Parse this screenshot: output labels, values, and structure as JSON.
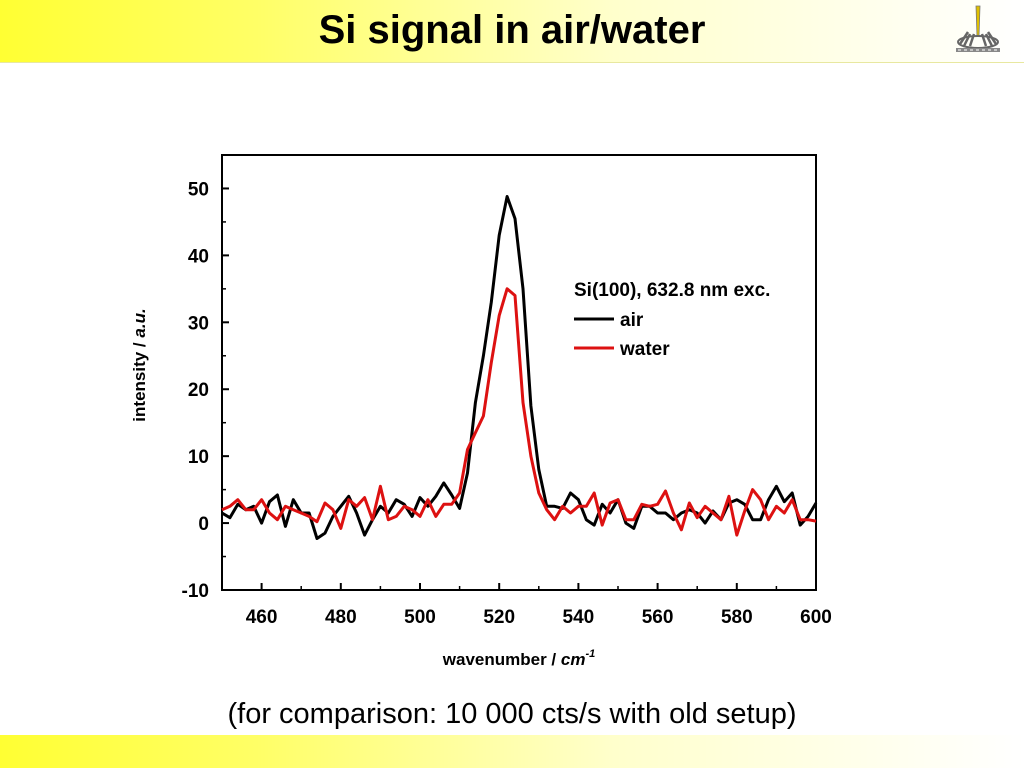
{
  "slide": {
    "title": "Si signal in air/water",
    "caption": "(for comparison: 10 000 cts/s with old setup)",
    "logo_icon": "laser-spark-logo-icon"
  },
  "colors": {
    "header_yellow": "#ffff33",
    "air": "#000000",
    "water": "#dd1111"
  },
  "chart_data": {
    "type": "line",
    "title": "",
    "xlabel": "wavenumber / ",
    "xlabel_unit": "cm",
    "xlabel_unit_exp": "-1",
    "ylabel": "intensity / ",
    "ylabel_unit": "a.u.",
    "xlim": [
      450,
      600
    ],
    "ylim": [
      -10,
      55
    ],
    "xticks": [
      460,
      480,
      500,
      520,
      540,
      560,
      580,
      600
    ],
    "yticks": [
      -10,
      0,
      10,
      20,
      30,
      40,
      50
    ],
    "grid": false,
    "legend": {
      "placement": "top-right",
      "title": "Si(100), 632.8 nm exc.",
      "entries": [
        "air",
        "water"
      ]
    },
    "series": [
      {
        "name": "air",
        "color": "#000000",
        "x": [
          450,
          452,
          454,
          456,
          458,
          460,
          462,
          464,
          466,
          468,
          470,
          472,
          474,
          476,
          478,
          480,
          482,
          484,
          486,
          488,
          490,
          492,
          494,
          496,
          498,
          500,
          502,
          504,
          506,
          508,
          510,
          512,
          514,
          516,
          518,
          520,
          522,
          524,
          526,
          528,
          530,
          532,
          534,
          536,
          538,
          540,
          542,
          544,
          546,
          548,
          550,
          552,
          554,
          556,
          558,
          560,
          562,
          564,
          566,
          568,
          570,
          572,
          574,
          576,
          578,
          580,
          582,
          584,
          586,
          588,
          590,
          592,
          594,
          596,
          598,
          600
        ],
        "y": [
          1.5,
          0.8,
          2.8,
          2.0,
          2.5,
          0,
          3.2,
          4.2,
          -0.5,
          3.5,
          1.5,
          1.5,
          -2.3,
          -1.5,
          1.0,
          2.5,
          4.0,
          1.5,
          -1.8,
          0.5,
          2.5,
          1.5,
          3.5,
          2.8,
          1.0,
          3.8,
          2.5,
          4.0,
          6.0,
          4.2,
          2.2,
          7.5,
          18.0,
          25.0,
          33.0,
          43.0,
          48.8,
          45.5,
          35.0,
          17.5,
          8.0,
          2.5,
          2.5,
          2.2,
          4.5,
          3.5,
          0.5,
          -0.3,
          2.8,
          1.5,
          3.5,
          0,
          -0.8,
          2.5,
          2.5,
          1.5,
          1.5,
          0.5,
          1.5,
          2.0,
          1.5,
          0,
          1.8,
          0.5,
          3.0,
          3.5,
          2.8,
          0.5,
          0.5,
          3.5,
          5.5,
          3.2,
          4.5,
          -0.3,
          1.0,
          3.0
        ]
      },
      {
        "name": "water",
        "color": "#dd1111",
        "x": [
          450,
          452,
          454,
          456,
          458,
          460,
          462,
          464,
          466,
          468,
          470,
          472,
          474,
          476,
          478,
          480,
          482,
          484,
          486,
          488,
          490,
          492,
          494,
          496,
          498,
          500,
          502,
          504,
          506,
          508,
          510,
          512,
          514,
          516,
          518,
          520,
          522,
          524,
          526,
          528,
          530,
          532,
          534,
          536,
          538,
          540,
          542,
          544,
          546,
          548,
          550,
          552,
          554,
          556,
          558,
          560,
          562,
          564,
          566,
          568,
          570,
          572,
          574,
          576,
          578,
          580,
          582,
          584,
          586,
          588,
          590,
          592,
          594,
          596,
          598,
          600
        ],
        "y": [
          2.0,
          2.5,
          3.5,
          2.0,
          2.0,
          3.5,
          1.5,
          0.5,
          2.5,
          2.0,
          1.5,
          1.0,
          0.2,
          3.0,
          2.0,
          -0.8,
          3.5,
          2.5,
          3.8,
          0.5,
          5.5,
          0.5,
          1.0,
          2.5,
          2.0,
          1.0,
          3.5,
          1.0,
          2.8,
          2.8,
          4.5,
          11.0,
          13.5,
          16.0,
          24.0,
          31.0,
          35.0,
          34.0,
          18.0,
          10.0,
          4.5,
          2.0,
          0.5,
          2.5,
          1.5,
          2.5,
          2.5,
          4.5,
          -0.3,
          3.0,
          3.5,
          0.5,
          0.5,
          2.8,
          2.5,
          2.8,
          4.8,
          1.5,
          -1.0,
          3.0,
          0.8,
          2.5,
          1.5,
          0.5,
          4.0,
          -1.8,
          1.8,
          5.0,
          3.5,
          0.5,
          2.5,
          1.5,
          3.5,
          0.5,
          0.5,
          0.3
        ]
      }
    ]
  }
}
